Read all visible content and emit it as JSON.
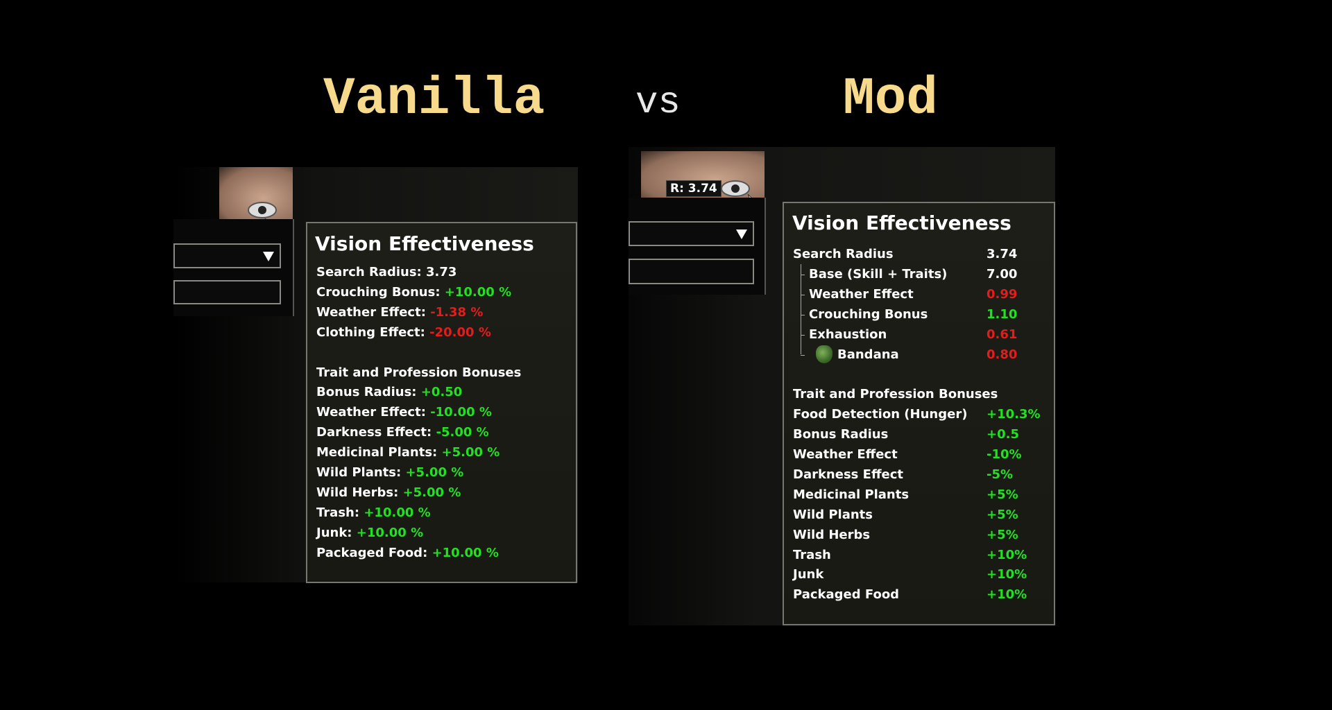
{
  "header": {
    "left": "Vanilla",
    "vs": "vs",
    "right": "Mod"
  },
  "vanilla": {
    "title": "Vision Effectiveness",
    "sections": [
      {
        "rows": [
          {
            "label": "Search Radius:",
            "value": "3.73",
            "tone": "white"
          },
          {
            "label": "Crouching Bonus:",
            "value": "+10.00 %",
            "tone": "green"
          },
          {
            "label": "Weather Effect:",
            "value": "-1.38 %",
            "tone": "red"
          },
          {
            "label": "Clothing Effect:",
            "value": "-20.00 %",
            "tone": "red"
          }
        ]
      },
      {
        "heading": "Trait and Profession Bonuses",
        "rows": [
          {
            "label": "Bonus Radius:",
            "value": "+0.50",
            "tone": "green"
          },
          {
            "label": "Weather Effect:",
            "value": "-10.00 %",
            "tone": "green"
          },
          {
            "label": "Darkness Effect:",
            "value": "-5.00 %",
            "tone": "green"
          },
          {
            "label": "Medicinal Plants:",
            "value": "+5.00 %",
            "tone": "green"
          },
          {
            "label": "Wild Plants:",
            "value": "+5.00 %",
            "tone": "green"
          },
          {
            "label": "Wild Herbs:",
            "value": "+5.00 %",
            "tone": "green"
          },
          {
            "label": "Trash:",
            "value": "+10.00 %",
            "tone": "green"
          },
          {
            "label": "Junk:",
            "value": "+10.00 %",
            "tone": "green"
          },
          {
            "label": "Packaged Food:",
            "value": "+10.00 %",
            "tone": "green"
          }
        ]
      }
    ]
  },
  "mod": {
    "badge": "R: 3.74",
    "title": "Vision Effectiveness",
    "sections": [
      {
        "rows": [
          {
            "label": "Search Radius",
            "value": "3.74",
            "tone": "white",
            "level": 0
          },
          {
            "label": "Base (Skill + Traits)",
            "value": "7.00",
            "tone": "white",
            "level": 1
          },
          {
            "label": "Weather Effect",
            "value": "0.99",
            "tone": "red",
            "level": 1
          },
          {
            "label": "Crouching Bonus",
            "value": "1.10",
            "tone": "green",
            "level": 1
          },
          {
            "label": "Exhaustion",
            "value": "0.61",
            "tone": "red",
            "level": 1
          },
          {
            "label": "Bandana",
            "value": "0.80",
            "tone": "red",
            "level": 2
          }
        ]
      },
      {
        "heading": "Trait and Profession Bonuses",
        "rows": [
          {
            "label": "Food Detection (Hunger)",
            "value": "+10.3%",
            "tone": "green",
            "level": 0
          },
          {
            "label": "Bonus Radius",
            "value": "+0.5",
            "tone": "green",
            "level": 0
          },
          {
            "label": "Weather Effect",
            "value": "-10%",
            "tone": "green",
            "level": 0
          },
          {
            "label": "Darkness Effect",
            "value": "-5%",
            "tone": "green",
            "level": 0
          },
          {
            "label": "Medicinal Plants",
            "value": "+5%",
            "tone": "green",
            "level": 0
          },
          {
            "label": "Wild Plants",
            "value": "+5%",
            "tone": "green",
            "level": 0
          },
          {
            "label": "Wild Herbs",
            "value": "+5%",
            "tone": "green",
            "level": 0
          },
          {
            "label": "Trash",
            "value": "+10%",
            "tone": "green",
            "level": 0
          },
          {
            "label": "Junk",
            "value": "+10%",
            "tone": "green",
            "level": 0
          },
          {
            "label": "Packaged Food",
            "value": "+10%",
            "tone": "green",
            "level": 0
          }
        ]
      }
    ]
  }
}
